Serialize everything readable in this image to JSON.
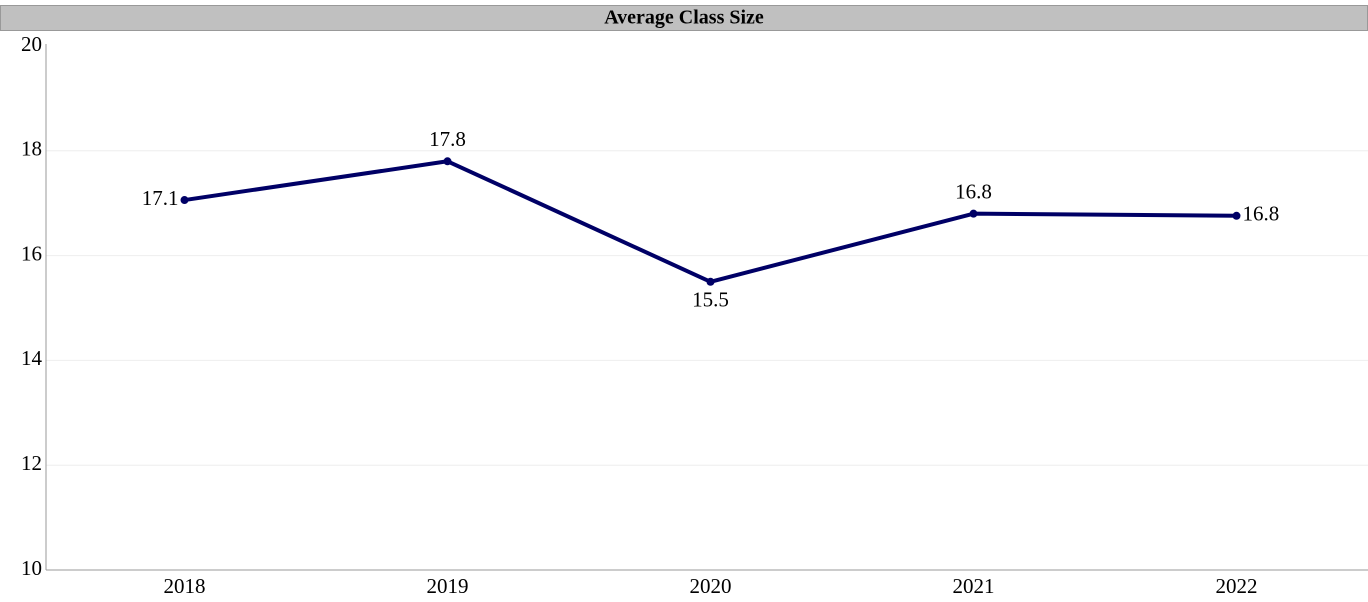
{
  "chart_data": {
    "type": "line",
    "title": "Average Class Size",
    "categories": [
      "2018",
      "2019",
      "2020",
      "2021",
      "2022"
    ],
    "series": [
      {
        "name": "Average Class Size",
        "color": "#000066",
        "values": [
          17.06,
          17.8,
          15.5,
          16.8,
          16.76
        ],
        "value_labels": [
          "17.1",
          "17.8",
          "15.5",
          "16.8",
          "16.8"
        ]
      }
    ],
    "ylim": [
      10,
      20
    ],
    "yticks": [
      10,
      12,
      14,
      16,
      18,
      20
    ],
    "grid": true
  }
}
